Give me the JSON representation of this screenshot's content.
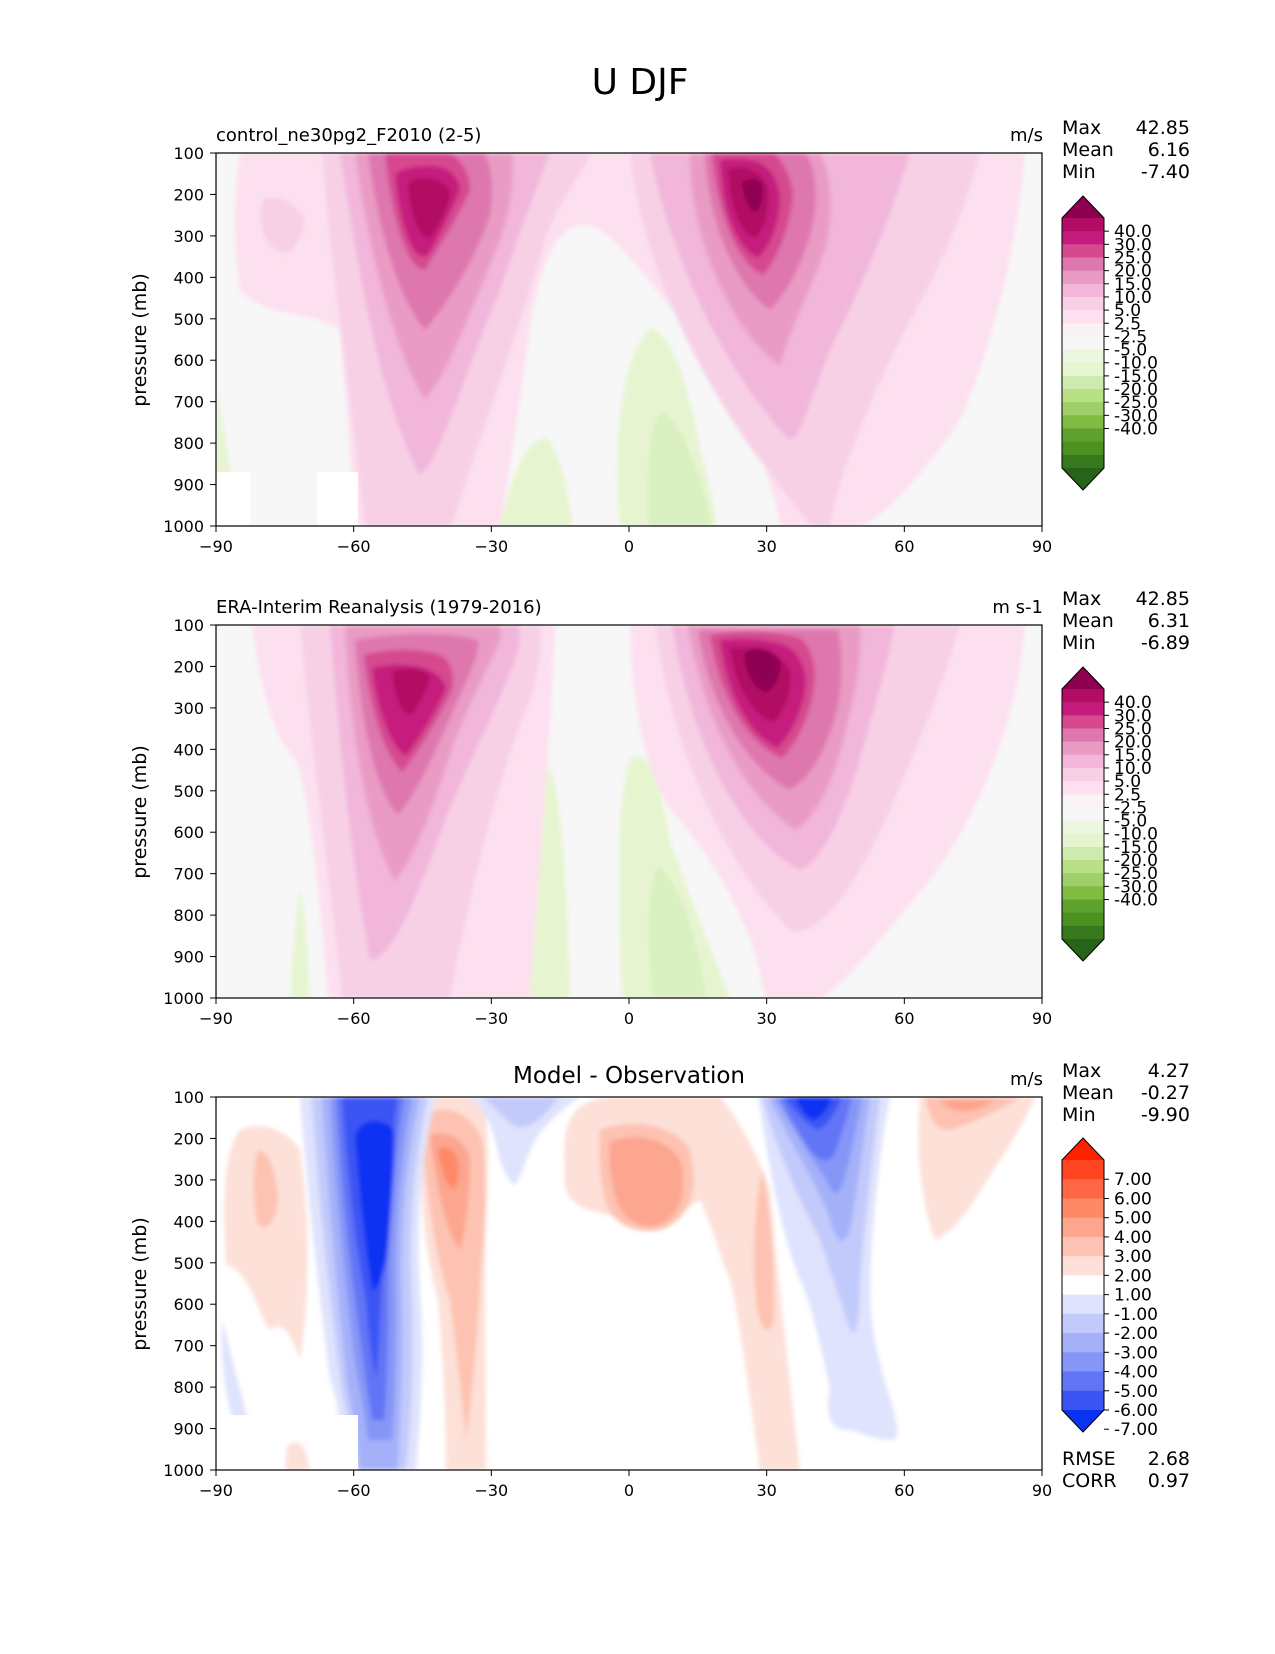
{
  "figure": {
    "title": "U DJF"
  },
  "chart_data": [
    {
      "type": "heatmap",
      "title": "control_ne30pg2_F2010 (2-5)",
      "units": "m/s",
      "ylabel": "pressure (mb)",
      "xlim": [
        -90,
        90
      ],
      "ylim": [
        1000,
        100
      ],
      "xticks": [
        "−90",
        "−60",
        "−30",
        "0",
        "30",
        "60",
        "90"
      ],
      "yticks": [
        "100",
        "200",
        "300",
        "400",
        "500",
        "600",
        "700",
        "800",
        "900",
        "1000"
      ],
      "stats": [
        {
          "label": "Max",
          "value": "42.85"
        },
        {
          "label": "Mean",
          "value": "6.16"
        },
        {
          "label": "Min",
          "value": "-7.40"
        }
      ],
      "colorbar_ticks": [
        "40.0",
        "30.0",
        "25.0",
        "20.0",
        "15.0",
        "10.0",
        "5.0",
        "2.5",
        "-2.5",
        "-5.0",
        "-10.0",
        "-15.0",
        "-20.0",
        "-25.0",
        "-30.0",
        "-40.0"
      ],
      "colormap": [
        "#8e0152",
        "#b10d64",
        "#c51b7d",
        "#d6498f",
        "#de77ae",
        "#e99bc4",
        "#f1b6da",
        "#f7d0e6",
        "#fde0ef",
        "#f9f3f6",
        "#f7f7f7",
        "#edf6e0",
        "#e6f5d0",
        "#cdebae",
        "#b8e186",
        "#9fcf6a",
        "#7fbc41",
        "#5ea12f",
        "#4d9221",
        "#37781f",
        "#276419"
      ]
    },
    {
      "type": "heatmap",
      "title": "ERA-Interim Reanalysis (1979-2016)",
      "units": "m s-1",
      "ylabel": "pressure (mb)",
      "xlim": [
        -90,
        90
      ],
      "ylim": [
        1000,
        100
      ],
      "xticks": [
        "−90",
        "−60",
        "−30",
        "0",
        "30",
        "60",
        "90"
      ],
      "yticks": [
        "100",
        "200",
        "300",
        "400",
        "500",
        "600",
        "700",
        "800",
        "900",
        "1000"
      ],
      "stats": [
        {
          "label": "Max",
          "value": "42.85"
        },
        {
          "label": "Mean",
          "value": "6.31"
        },
        {
          "label": "Min",
          "value": "-6.89"
        }
      ],
      "colorbar_ticks": [
        "40.0",
        "30.0",
        "25.0",
        "20.0",
        "15.0",
        "10.0",
        "5.0",
        "2.5",
        "-2.5",
        "-5.0",
        "-10.0",
        "-15.0",
        "-20.0",
        "-25.0",
        "-30.0",
        "-40.0"
      ],
      "colormap": [
        "#8e0152",
        "#b10d64",
        "#c51b7d",
        "#d6498f",
        "#de77ae",
        "#e99bc4",
        "#f1b6da",
        "#f7d0e6",
        "#fde0ef",
        "#f9f3f6",
        "#f7f7f7",
        "#edf6e0",
        "#e6f5d0",
        "#cdebae",
        "#b8e186",
        "#9fcf6a",
        "#7fbc41",
        "#5ea12f",
        "#4d9221",
        "#37781f",
        "#276419"
      ]
    },
    {
      "type": "heatmap",
      "title": "Model - Observation",
      "units": "m/s",
      "ylabel": "pressure (mb)",
      "xlim": [
        -90,
        90
      ],
      "ylim": [
        1000,
        100
      ],
      "xticks": [
        "−90",
        "−60",
        "−30",
        "0",
        "30",
        "60",
        "90"
      ],
      "yticks": [
        "100",
        "200",
        "300",
        "400",
        "500",
        "600",
        "700",
        "800",
        "900",
        "1000"
      ],
      "stats": [
        {
          "label": "Max",
          "value": "4.27"
        },
        {
          "label": "Mean",
          "value": "-0.27"
        },
        {
          "label": "Min",
          "value": "-9.90"
        }
      ],
      "metrics": [
        {
          "label": "RMSE",
          "value": "2.68"
        },
        {
          "label": "CORR",
          "value": "0.97"
        }
      ],
      "colorbar_ticks": [
        "7.00",
        "6.00",
        "5.00",
        "4.00",
        "3.00",
        "2.00",
        "1.00",
        "-1.00",
        "-2.00",
        "-3.00",
        "-4.00",
        "-5.00",
        "-6.00",
        "-7.00"
      ],
      "colormap": [
        "#ff2200",
        "#ff4422",
        "#ff6644",
        "#ff8866",
        "#fca58f",
        "#fdc2b1",
        "#fde0d8",
        "#ffffff",
        "#dfe3fd",
        "#c2cafb",
        "#a4b1f9",
        "#8596f7",
        "#6275f6",
        "#3b54f4",
        "#0a32f2"
      ]
    }
  ]
}
